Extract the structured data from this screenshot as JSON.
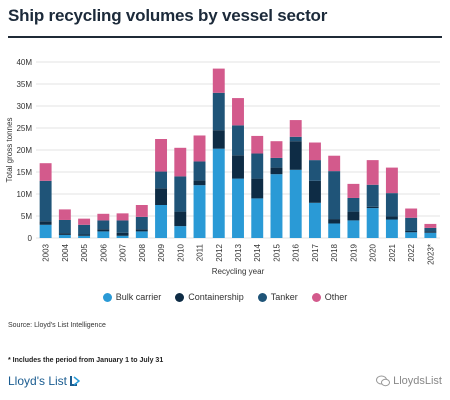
{
  "title": "Ship recycling volumes by vessel sector",
  "source": "Source: Lloyd's List Intelligence",
  "footnote": "* Includes the period from January 1 to July 31",
  "brand": "Lloyd's List",
  "watermark": "LloydsList",
  "colors": {
    "bulk": "#2a9ad6",
    "container": "#0e2c45",
    "tanker": "#1f5478",
    "other": "#d35a8c"
  },
  "chart_data": {
    "type": "bar",
    "stacked": true,
    "xlabel": "Recycling year",
    "ylabel": "Total gross tonnes",
    "ylim": [
      0,
      40
    ],
    "yticks": [
      0,
      5,
      10,
      15,
      20,
      25,
      30,
      35,
      40
    ],
    "ytick_labels": [
      "0",
      "5M",
      "10M",
      "15M",
      "20M",
      "25M",
      "30M",
      "35M",
      "40M"
    ],
    "grid": true,
    "legend_position": "bottom",
    "categories": [
      "2003",
      "2004",
      "2005",
      "2006",
      "2007",
      "2008",
      "2009",
      "2010",
      "2011",
      "2012",
      "2013",
      "2014",
      "2015",
      "2016",
      "2017",
      "2018",
      "2019",
      "2020",
      "2021",
      "2022",
      "2023*"
    ],
    "series": [
      {
        "name": "Bulk carrier",
        "values": [
          3.0,
          0.7,
          0.5,
          1.5,
          0.5,
          1.5,
          7.5,
          2.7,
          12.0,
          20.3,
          13.5,
          9.0,
          14.5,
          15.5,
          8.0,
          3.3,
          4.0,
          6.8,
          4.2,
          1.3,
          1.2
        ]
      },
      {
        "name": "Containership",
        "values": [
          0.8,
          0.4,
          0.3,
          0.5,
          0.7,
          0.5,
          3.8,
          3.3,
          1.1,
          4.2,
          5.3,
          4.5,
          1.5,
          6.5,
          5.0,
          1.0,
          2.0,
          0.3,
          0.7,
          0.3,
          0.3
        ]
      },
      {
        "name": "Tanker",
        "values": [
          9.2,
          3.0,
          2.2,
          2.0,
          2.8,
          2.8,
          3.8,
          8.0,
          4.3,
          8.5,
          6.8,
          5.7,
          2.2,
          1.0,
          4.7,
          10.9,
          3.1,
          5.0,
          5.3,
          3.0,
          0.8
        ]
      },
      {
        "name": "Other",
        "values": [
          4.0,
          2.4,
          1.4,
          1.5,
          1.6,
          2.7,
          7.4,
          6.5,
          5.9,
          5.5,
          6.2,
          4.0,
          3.8,
          3.8,
          4.0,
          3.5,
          3.2,
          5.6,
          5.8,
          2.1,
          0.9
        ]
      }
    ]
  }
}
